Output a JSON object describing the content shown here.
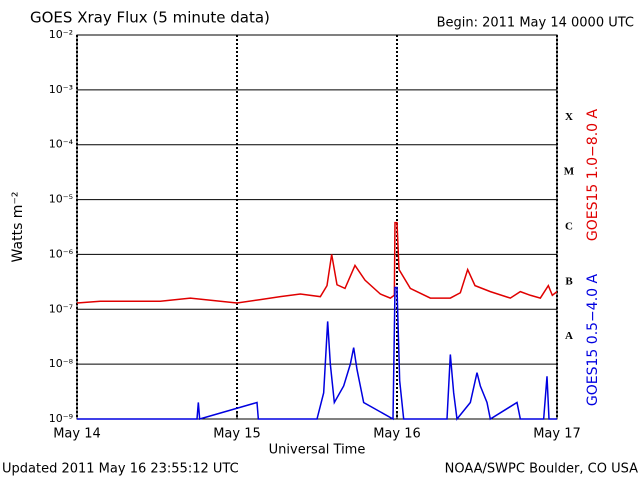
{
  "chart_data": {
    "type": "line",
    "title": "GOES Xray Flux (5 minute data)",
    "subtitle": "Begin:  2011 May 14 0000 UTC",
    "xlabel": "Universal Time",
    "ylabel": "Watts m⁻²",
    "footer_left": "Updated 2011 May 16 23:55:12 UTC",
    "footer_right": "NOAA/SWPC Boulder, CO USA",
    "flare_classes": [
      "X",
      "M",
      "C",
      "B",
      "A"
    ],
    "log_scale": true,
    "grid": true,
    "xlim": [
      0,
      72
    ],
    "xticks": [
      {
        "value": 0,
        "label": "May 14"
      },
      {
        "value": 24,
        "label": "May 15"
      },
      {
        "value": 48,
        "label": "May 16"
      },
      {
        "value": 72,
        "label": "May 17"
      }
    ],
    "ylim": [
      1e-09,
      0.01
    ],
    "yticks": [
      {
        "value": 1e-09,
        "label": "10⁻⁹"
      },
      {
        "value": 1e-08,
        "label": "10⁻⁸"
      },
      {
        "value": 1e-07,
        "label": "10⁻⁷"
      },
      {
        "value": 1e-06,
        "label": "10⁻⁶"
      },
      {
        "value": 1e-05,
        "label": "10⁻⁵"
      },
      {
        "value": 0.0001,
        "label": "10⁻⁴"
      },
      {
        "value": 0.001,
        "label": "10⁻³"
      },
      {
        "value": 0.01,
        "label": "10⁻²"
      }
    ],
    "series": [
      {
        "name": "GOES15 1.0−8.0 A",
        "color": "#e00000",
        "x": [
          0,
          3.5,
          8,
          12.5,
          17,
          21.5,
          24,
          27.5,
          30.5,
          33.5,
          36.5,
          37.5,
          38.2,
          39,
          40.2,
          41.7,
          43.2,
          45.5,
          47,
          47.6,
          47.7,
          48,
          48.3,
          50,
          53,
          56,
          57.5,
          58.6,
          59.7,
          62,
          65,
          66.5,
          68,
          69.5,
          70.7,
          71.3,
          72
        ],
        "values": [
          1.3e-07,
          1.4e-07,
          1.4e-07,
          1.4e-07,
          1.6e-07,
          1.4e-07,
          1.3e-07,
          1.5e-07,
          1.7e-07,
          1.9e-07,
          1.7e-07,
          2.7e-07,
          1e-06,
          2.8e-07,
          2.4e-07,
          6.3e-07,
          3.4e-07,
          1.9e-07,
          1.6e-07,
          1.8e-07,
          3.8e-06,
          3.8e-06,
          5.3e-07,
          2.4e-07,
          1.6e-07,
          1.6e-07,
          2e-07,
          5.3e-07,
          2.7e-07,
          2.1e-07,
          1.6e-07,
          2.1e-07,
          1.8e-07,
          1.6e-07,
          2.7e-07,
          1.8e-07,
          2.1e-07
        ]
      },
      {
        "name": "GOES15 0.5−4.0 A",
        "color": "#0000e0",
        "x": [
          0,
          18,
          18.2,
          18.4,
          27,
          27.2,
          36,
          37,
          37.6,
          38,
          38.6,
          40,
          41,
          41.5,
          42,
          43,
          47.4,
          47.7,
          48,
          48.4,
          49,
          55.5,
          56,
          56.5,
          57,
          59,
          60,
          60.5,
          61.5,
          62,
          66,
          66.5,
          70,
          70.5,
          70.8,
          72
        ],
        "values": [
          1e-09,
          1e-09,
          2e-09,
          1e-09,
          2e-09,
          1e-09,
          1e-09,
          3e-09,
          6e-08,
          1e-08,
          2e-09,
          4e-09,
          1e-08,
          2e-08,
          8e-09,
          2e-09,
          1e-09,
          2.5e-07,
          2.5e-07,
          5e-09,
          1e-09,
          1e-09,
          1.5e-08,
          3e-09,
          1e-09,
          2e-09,
          7e-09,
          4e-09,
          2e-09,
          1e-09,
          2e-09,
          1e-09,
          1e-09,
          6e-09,
          1e-09,
          1e-09
        ]
      }
    ]
  }
}
